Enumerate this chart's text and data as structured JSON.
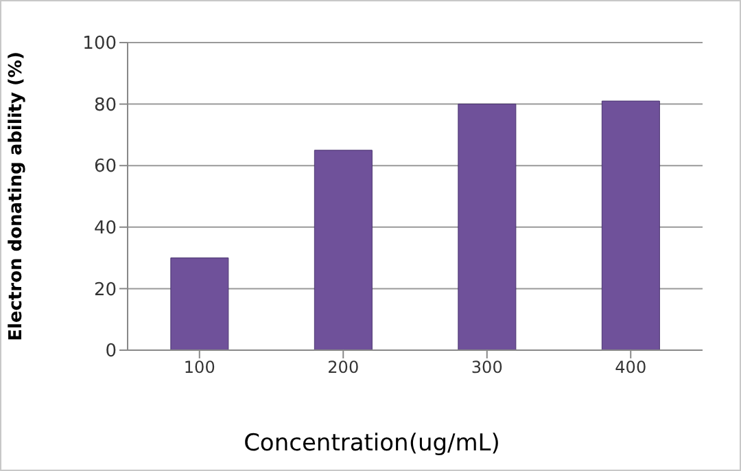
{
  "chart_data": {
    "type": "bar",
    "xlabel": "Concentration(ug/mL)",
    "ylabel": "Electron donating ability (%)",
    "categories": [
      "100",
      "200",
      "300",
      "400"
    ],
    "values": [
      30,
      65,
      80,
      81
    ],
    "color": "#6f519a",
    "ylim": [
      0,
      100
    ],
    "yticks": [
      0,
      20,
      40,
      60,
      80,
      100
    ],
    "grid": "y"
  }
}
